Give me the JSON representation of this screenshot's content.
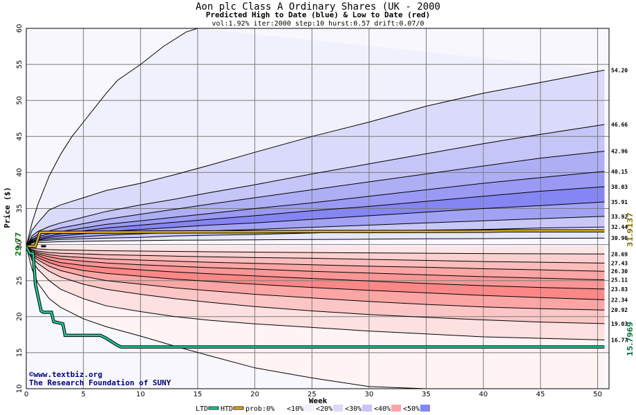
{
  "chart_data": {
    "type": "area",
    "title": "Aon plc Class A Ordinary Shares (UK - 2000",
    "subtitle": "Predicted High to Date (blue) &  Low to Date (red)",
    "params": "vol:1.92% iter:2000 step:10 hurst:0.57 drift:0.07/0",
    "xlabel": "Week",
    "ylabel": "Price ($)",
    "xlim": [
      0,
      51
    ],
    "ylim": [
      10,
      60
    ],
    "x_ticks": [
      0,
      5,
      10,
      15,
      20,
      25,
      30,
      35,
      40,
      45,
      50
    ],
    "y_ticks": [
      10,
      15,
      20,
      25,
      30,
      35,
      40,
      45,
      50,
      55,
      60
    ],
    "grid": true,
    "start_price": 29.77,
    "start_label": "29.77",
    "high_to_date_label": "31.9137",
    "low_to_date_label": "15.7969",
    "x": [
      0,
      0.5,
      1,
      2,
      3,
      5,
      7,
      10,
      13,
      16,
      20,
      25,
      30,
      35,
      40,
      45,
      50.6
    ],
    "upper_curves": [
      {
        "final_label": "54.20",
        "values": [
          29.77,
          32.0,
          33.0,
          34.8,
          35.5,
          36.5,
          37.5,
          38.5,
          39.7,
          41.0,
          42.8,
          45.0,
          47.0,
          49.2,
          51.0,
          52.5,
          54.2
        ]
      },
      {
        "final_label": "46.66",
        "values": [
          29.77,
          31.2,
          31.8,
          32.5,
          33.0,
          33.8,
          34.6,
          35.5,
          36.3,
          37.2,
          38.3,
          39.8,
          41.2,
          42.6,
          44.0,
          45.3,
          46.66
        ]
      },
      {
        "final_label": "42.96",
        "values": [
          29.77,
          30.9,
          31.4,
          31.9,
          32.3,
          32.9,
          33.5,
          34.2,
          34.9,
          35.6,
          36.5,
          37.6,
          38.7,
          39.8,
          40.9,
          42.0,
          42.96
        ]
      },
      {
        "final_label": "40.15",
        "values": [
          29.77,
          30.7,
          31.1,
          31.5,
          31.8,
          32.3,
          32.8,
          33.3,
          33.8,
          34.3,
          35.0,
          35.8,
          36.7,
          37.6,
          38.5,
          39.3,
          40.15
        ]
      },
      {
        "final_label": "38.03",
        "values": [
          29.77,
          30.6,
          30.9,
          31.2,
          31.5,
          31.9,
          32.3,
          32.7,
          33.1,
          33.5,
          34.0,
          34.7,
          35.3,
          36.0,
          36.7,
          37.4,
          38.03
        ]
      },
      {
        "final_label": "35.91",
        "values": [
          29.77,
          30.5,
          30.7,
          31.0,
          31.2,
          31.5,
          31.8,
          32.1,
          32.4,
          32.7,
          33.0,
          33.5,
          34.0,
          34.5,
          35.0,
          35.4,
          35.91
        ]
      },
      {
        "final_label": "33.92",
        "values": [
          29.77,
          30.4,
          30.6,
          30.8,
          30.9,
          31.1,
          31.3,
          31.5,
          31.7,
          31.9,
          32.1,
          32.4,
          32.7,
          33.0,
          33.3,
          33.6,
          33.92
        ]
      },
      {
        "final_label": "32.44",
        "values": [
          29.77,
          30.3,
          30.5,
          30.6,
          30.7,
          30.8,
          30.9,
          31.0,
          31.2,
          31.3,
          31.4,
          31.6,
          31.8,
          32.0,
          32.1,
          32.3,
          32.44
        ]
      },
      {
        "final_label": "30.90",
        "values": [
          29.77,
          30.2,
          30.3,
          30.35,
          30.4,
          30.45,
          30.5,
          30.55,
          30.6,
          30.62,
          30.66,
          30.7,
          30.75,
          30.8,
          30.83,
          30.87,
          30.9
        ]
      }
    ],
    "lower_curves": [
      {
        "final_label": "28.69",
        "values": [
          29.77,
          29.5,
          29.4,
          29.3,
          29.25,
          29.2,
          29.15,
          29.1,
          29.05,
          29.0,
          28.95,
          28.9,
          28.85,
          28.8,
          28.75,
          28.72,
          28.69
        ]
      },
      {
        "final_label": "27.43",
        "values": [
          29.77,
          29.3,
          29.1,
          28.9,
          28.8,
          28.7,
          28.6,
          28.5,
          28.4,
          28.3,
          28.2,
          28.1,
          27.95,
          27.8,
          27.65,
          27.55,
          27.43
        ]
      },
      {
        "final_label": "26.30",
        "values": [
          29.77,
          29.2,
          28.9,
          28.6,
          28.4,
          28.2,
          28.0,
          27.85,
          27.7,
          27.55,
          27.4,
          27.2,
          27.0,
          26.85,
          26.65,
          26.5,
          26.3
        ]
      },
      {
        "final_label": "25.11",
        "values": [
          29.77,
          29.0,
          28.7,
          28.3,
          28.0,
          27.7,
          27.45,
          27.2,
          27.0,
          26.8,
          26.6,
          26.3,
          26.05,
          25.8,
          25.55,
          25.35,
          25.11
        ]
      },
      {
        "final_label": "23.83",
        "values": [
          29.77,
          28.9,
          28.5,
          27.9,
          27.5,
          27.1,
          26.8,
          26.5,
          26.2,
          25.95,
          25.65,
          25.3,
          24.95,
          24.6,
          24.3,
          24.05,
          23.83
        ]
      },
      {
        "final_label": "22.34",
        "values": [
          29.77,
          28.7,
          28.2,
          27.5,
          27.0,
          26.4,
          26.0,
          25.6,
          25.2,
          24.9,
          24.5,
          24.05,
          23.65,
          23.3,
          22.95,
          22.65,
          22.34
        ]
      },
      {
        "final_label": "20.92",
        "values": [
          29.77,
          28.5,
          27.9,
          27.0,
          26.4,
          25.6,
          25.0,
          24.5,
          24.0,
          23.6,
          23.1,
          22.6,
          22.1,
          21.7,
          21.35,
          21.1,
          20.92
        ]
      },
      {
        "final_label": "19.03",
        "values": [
          29.77,
          28.2,
          27.4,
          26.3,
          25.5,
          24.5,
          23.8,
          23.1,
          22.5,
          22.0,
          21.4,
          20.8,
          20.3,
          19.9,
          19.55,
          19.25,
          19.03
        ]
      },
      {
        "final_label": "16.77",
        "values": [
          29.77,
          27.8,
          26.6,
          25.0,
          23.8,
          22.5,
          21.5,
          20.7,
          20.0,
          19.5,
          19.0,
          18.5,
          18.0,
          17.6,
          17.2,
          17.0,
          16.77
        ]
      },
      {
        "final_label": "",
        "values": [
          29.77,
          26.6,
          24.7,
          22.5,
          21.3,
          19.7,
          18.6,
          17.3,
          15.9,
          14.6,
          12.9,
          11.5,
          10.3,
          9.5,
          9.0,
          8.5,
          8.0
        ]
      }
    ],
    "outer_upper": {
      "x": [
        0,
        0.5,
        1,
        2,
        3,
        4,
        5,
        6,
        7,
        8,
        10,
        12,
        14,
        15
      ],
      "values": [
        29.77,
        33.0,
        35.5,
        39.5,
        42.5,
        45.0,
        47.0,
        49.0,
        51.0,
        52.8,
        55.0,
        57.5,
        59.5,
        60
      ]
    },
    "high_to_date": {
      "x": [
        0,
        0.8,
        1.2,
        5,
        10,
        15,
        20,
        25,
        30,
        35,
        40,
        42,
        45,
        50.6
      ],
      "values": [
        29.77,
        29.77,
        31.7,
        31.72,
        31.74,
        31.76,
        31.78,
        31.8,
        31.8,
        31.82,
        31.84,
        31.91,
        31.91,
        31.91
      ]
    },
    "low_to_date": {
      "x": [
        0,
        0.3,
        0.6,
        0.8,
        1.3,
        1.5,
        2.2,
        2.4,
        3.2,
        3.4,
        6.5,
        7.0,
        7.5,
        8.0,
        8.3,
        10,
        20,
        30,
        40,
        50.6
      ],
      "values": [
        29.77,
        28.8,
        28.8,
        24.5,
        20.8,
        20.6,
        20.6,
        19.3,
        19.0,
        17.4,
        17.4,
        17.0,
        16.5,
        16.0,
        15.8,
        15.8,
        15.8,
        15.8,
        15.8,
        15.8
      ]
    },
    "colors": {
      "upper_fills": [
        "#f1f1fd",
        "#dadafa",
        "#c5c5f7",
        "#aeaef5",
        "#9a9af4",
        "#8585f4",
        "#a2a2f5",
        "#c8c8f8",
        "#e6e6fb"
      ],
      "lower_fills": [
        "#fde5e5",
        "#fcd0d0",
        "#fcbcbc",
        "#fca5a5",
        "#fa9696",
        "#fb8787",
        "#fca5a5",
        "#fcc6c6",
        "#fde0e0",
        "#fff3f3"
      ],
      "background": "#f7f7fd",
      "grid": "#7a7a7a",
      "high_line": "#e6ad1c",
      "low_line": "#22c997",
      "start_label": "#147a14",
      "high_label": "#8a7a10",
      "low_label": "#147a4a",
      "credit": "#000080"
    }
  },
  "credit": {
    "line1": "©www.textbiz.org",
    "line2": "The Research Foundation of SUNY"
  },
  "legend": [
    {
      "label": "LTD",
      "swatch": "#22c997",
      "kind": "line"
    },
    {
      "label": "HTD",
      "swatch": "#e6ad1c",
      "kind": "line"
    },
    {
      "label": "prob:0%",
      "swatch": "#ffffff",
      "kind": "box"
    },
    {
      "label": "<10%",
      "swatch": "#f1f1fd",
      "kind": "box"
    },
    {
      "label": "<20%",
      "swatch": "#dadafa",
      "kind": "box"
    },
    {
      "label": "<30%",
      "swatch": "#c5c5f7",
      "kind": "box"
    },
    {
      "label": "<40%",
      "swatch": "#fca5a5",
      "kind": "box"
    },
    {
      "label": "<50%",
      "swatch": "#8585f4",
      "kind": "box"
    }
  ]
}
